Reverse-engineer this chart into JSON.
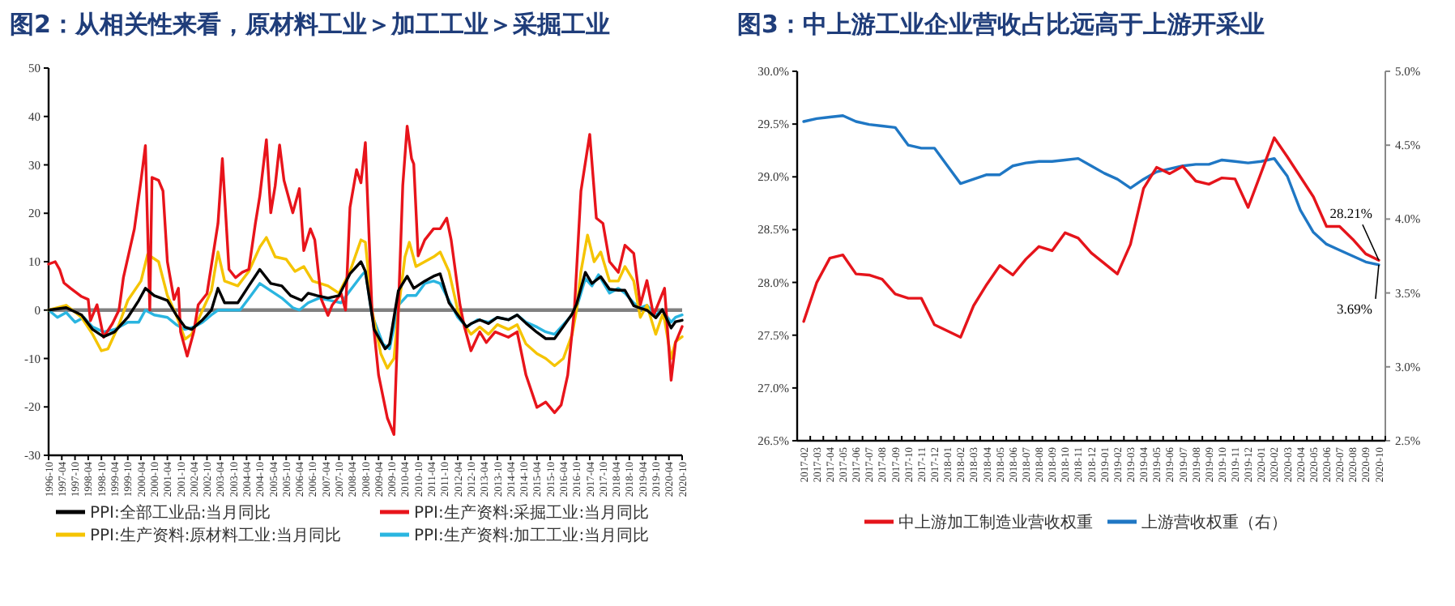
{
  "chart_data": [
    {
      "type": "line",
      "title": "图2：从相关性来看，原材料工业＞加工工业＞采掘工业",
      "xlim": [
        "1996-10",
        "2020-10"
      ],
      "xticks": [
        "1996-10",
        "1997-04",
        "1997-10",
        "1998-04",
        "1998-10",
        "1999-04",
        "1999-10",
        "2000-04",
        "2000-10",
        "2001-04",
        "2001-10",
        "2002-04",
        "2002-10",
        "2003-04",
        "2003-10",
        "2004-04",
        "2004-10",
        "2005-04",
        "2005-10",
        "2006-04",
        "2006-10",
        "2007-04",
        "2007-10",
        "2008-04",
        "2008-10",
        "2009-04",
        "2009-10",
        "2010-04",
        "2010-10",
        "2011-04",
        "2011-10",
        "2012-04",
        "2012-10",
        "2013-04",
        "2013-10",
        "2014-04",
        "2014-10",
        "2015-04",
        "2015-10",
        "2016-04",
        "2016-10",
        "2017-04",
        "2017-10",
        "2018-04",
        "2018-10",
        "2019-04",
        "2019-10",
        "2020-04",
        "2020-10"
      ],
      "ylim": [
        -30,
        50
      ],
      "yticks": [
        -30,
        -20,
        -10,
        0,
        10,
        20,
        30,
        40,
        50
      ],
      "ref_lines": [
        {
          "axis": "y",
          "value": 0,
          "color": "#808080"
        }
      ],
      "legend": "bottom",
      "series": [
        {
          "name": "PPI:全部工业品:当月同比",
          "color": "#000000",
          "x": [
            "1996-10",
            "1997-06",
            "1998-01",
            "1998-06",
            "1998-11",
            "1999-04",
            "1999-10",
            "2000-03",
            "2000-06",
            "2000-10",
            "2001-04",
            "2001-08",
            "2001-12",
            "2002-03",
            "2002-08",
            "2002-12",
            "2003-03",
            "2003-06",
            "2003-12",
            "2004-05",
            "2004-10",
            "2005-03",
            "2005-08",
            "2005-12",
            "2006-05",
            "2006-08",
            "2006-12",
            "2007-05",
            "2007-10",
            "2008-03",
            "2008-08",
            "2008-10",
            "2009-02",
            "2009-07",
            "2009-09",
            "2010-01",
            "2010-05",
            "2010-08",
            "2011-01",
            "2011-05",
            "2011-08",
            "2011-12",
            "2012-04",
            "2012-08",
            "2012-10",
            "2013-02",
            "2013-06",
            "2013-10",
            "2014-03",
            "2014-07",
            "2014-11",
            "2015-04",
            "2015-08",
            "2015-12",
            "2016-04",
            "2016-08",
            "2016-10",
            "2017-02",
            "2017-05",
            "2017-09",
            "2018-01",
            "2018-05",
            "2018-08",
            "2018-12",
            "2019-03",
            "2019-06",
            "2019-10",
            "2020-01",
            "2020-05",
            "2020-07",
            "2020-10"
          ],
          "values": [
            0,
            0.5,
            -1,
            -4,
            -5.5,
            -4.5,
            -1.5,
            2,
            4.5,
            3,
            2,
            -1,
            -3.5,
            -4,
            -2,
            0,
            4.5,
            1.5,
            1.5,
            5,
            8.4,
            5.5,
            5,
            3,
            2,
            3.5,
            3,
            2.5,
            3,
            7.5,
            10,
            8,
            -4,
            -8,
            -7,
            4,
            7,
            4.5,
            6,
            7,
            7.5,
            1.5,
            -1,
            -3.5,
            -2.8,
            -2,
            -2.8,
            -1.5,
            -2,
            -1,
            -2.7,
            -4.6,
            -5.9,
            -5.9,
            -3.4,
            -0.8,
            1.2,
            7.8,
            5.5,
            6.9,
            4.3,
            4.1,
            4.1,
            0.9,
            0.4,
            0,
            -1.6,
            0.1,
            -3.7,
            -2.4,
            -2.1
          ]
        },
        {
          "name": "PPI:生产资料:采掘工业:当月同比",
          "color": "#e8141b",
          "x": [
            "1996-10",
            "1997-01",
            "1997-03",
            "1997-05",
            "1997-08",
            "1998-01",
            "1998-04",
            "1998-05",
            "1998-08",
            "1998-11",
            "1999-03",
            "1999-06",
            "1999-08",
            "2000-01",
            "2000-04",
            "2000-06",
            "2000-08",
            "2000-09",
            "2000-12",
            "2001-02",
            "2001-04",
            "2001-07",
            "2001-09",
            "2001-10",
            "2002-01",
            "2002-04",
            "2002-06",
            "2002-10",
            "2003-03",
            "2003-05",
            "2003-08",
            "2003-11",
            "2004-02",
            "2004-05",
            "2004-08",
            "2004-10",
            "2005-01",
            "2005-03",
            "2005-05",
            "2005-07",
            "2005-09",
            "2006-01",
            "2006-04",
            "2006-06",
            "2006-09",
            "2006-11",
            "2007-02",
            "2007-05",
            "2007-07",
            "2007-11",
            "2008-01",
            "2008-03",
            "2008-06",
            "2008-08",
            "2008-10",
            "2009-01",
            "2009-04",
            "2009-08",
            "2009-11",
            "2010-01",
            "2010-03",
            "2010-05",
            "2010-07",
            "2010-08",
            "2010-10",
            "2011-01",
            "2011-05",
            "2011-08",
            "2011-11",
            "2012-01",
            "2012-05",
            "2012-07",
            "2012-10",
            "2013-02",
            "2013-05",
            "2013-09",
            "2014-03",
            "2014-07",
            "2014-11",
            "2015-04",
            "2015-08",
            "2015-12",
            "2016-03",
            "2016-06",
            "2016-09",
            "2016-12",
            "2017-04",
            "2017-07",
            "2017-10",
            "2018-01",
            "2018-05",
            "2018-08",
            "2018-12",
            "2019-03",
            "2019-06",
            "2019-09",
            "2020-02",
            "2020-05",
            "2020-07",
            "2020-10"
          ],
          "values": [
            9.5,
            10,
            8.4,
            5.6,
            4.5,
            2.8,
            2.2,
            -2.2,
            1.1,
            -5.6,
            -2.8,
            0,
            6.7,
            16.8,
            26.8,
            34,
            0,
            27.4,
            26.8,
            24.6,
            10,
            2.2,
            4.5,
            -4.5,
            -9.5,
            -4.5,
            1.1,
            3.4,
            17.9,
            31.3,
            8.4,
            6.7,
            7.8,
            8.4,
            17.9,
            23.5,
            35.2,
            20.1,
            25.7,
            34.1,
            26.8,
            20.1,
            25.1,
            12.3,
            16.8,
            14.5,
            2.2,
            -1.1,
            1.1,
            3.4,
            0,
            21.2,
            29,
            26.3,
            34.6,
            0,
            -13.4,
            -22.3,
            -25.7,
            0,
            25.7,
            38,
            31.3,
            30.2,
            11.2,
            14.5,
            16.8,
            16.8,
            19,
            14.5,
            1.1,
            -3.4,
            -8.4,
            -4.5,
            -6.7,
            -4.5,
            -5.6,
            -4.5,
            -13.4,
            -20.1,
            -19,
            -21.2,
            -19.6,
            -13.4,
            0,
            24.6,
            36.3,
            19,
            17.9,
            10,
            7.8,
            13.4,
            11.7,
            1.1,
            6.1,
            -1.1,
            4.5,
            -14.5,
            -6.7,
            -3.4
          ]
        },
        {
          "name": "PPI:生产资料:原材料工业:当月同比",
          "color": "#f5c400",
          "x": [
            "1996-10",
            "1997-06",
            "1998-01",
            "1998-06",
            "1998-10",
            "1999-01",
            "1999-06",
            "1999-10",
            "2000-04",
            "2000-07",
            "2000-12",
            "2001-04",
            "2001-08",
            "2001-12",
            "2002-03",
            "2002-08",
            "2002-12",
            "2003-03",
            "2003-06",
            "2003-12",
            "2004-05",
            "2004-10",
            "2005-01",
            "2005-05",
            "2005-10",
            "2006-02",
            "2006-06",
            "2006-10",
            "2007-05",
            "2007-10",
            "2008-03",
            "2008-08",
            "2008-10",
            "2009-01",
            "2009-05",
            "2009-08",
            "2009-11",
            "2010-01",
            "2010-04",
            "2010-06",
            "2010-09",
            "2011-01",
            "2011-05",
            "2011-08",
            "2011-12",
            "2012-04",
            "2012-07",
            "2012-10",
            "2013-02",
            "2013-06",
            "2013-10",
            "2014-03",
            "2014-07",
            "2014-11",
            "2015-04",
            "2015-08",
            "2015-12",
            "2016-04",
            "2016-08",
            "2016-10",
            "2016-12",
            "2017-03",
            "2017-06",
            "2017-09",
            "2018-01",
            "2018-05",
            "2018-08",
            "2018-12",
            "2019-03",
            "2019-06",
            "2019-10",
            "2020-01",
            "2020-02",
            "2020-05",
            "2020-07",
            "2020-10"
          ],
          "values": [
            0,
            1,
            -1.5,
            -5,
            -8.4,
            -8,
            -3,
            2,
            6,
            11.5,
            10,
            3,
            -1,
            -6,
            -5,
            0,
            4,
            12,
            6,
            5,
            8,
            13,
            15,
            11,
            10.5,
            8,
            9,
            6,
            5,
            3.5,
            8,
            14.5,
            14,
            0,
            -9,
            -12,
            -10,
            0,
            11,
            14,
            9,
            10,
            11,
            12,
            8,
            0,
            -3,
            -5,
            -3.5,
            -5,
            -3,
            -4,
            -3,
            -7,
            -9,
            -10,
            -11.5,
            -10,
            -5,
            0,
            8,
            15.5,
            10,
            12,
            6,
            6,
            9,
            6,
            -1.5,
            1,
            -5,
            -1,
            -2,
            -10,
            -6.5,
            -5.5
          ]
        },
        {
          "name": "PPI:生产资料:加工工业:当月同比",
          "color": "#2ab5e0",
          "x": [
            "1996-10",
            "1997-02",
            "1997-06",
            "1997-10",
            "1998-02",
            "1998-06",
            "1998-11",
            "1999-04",
            "1999-10",
            "2000-03",
            "2000-06",
            "2000-10",
            "2001-04",
            "2001-08",
            "2001-12",
            "2002-04",
            "2002-08",
            "2002-12",
            "2003-03",
            "2003-09",
            "2004-01",
            "2004-06",
            "2004-10",
            "2005-03",
            "2005-08",
            "2006-01",
            "2006-04",
            "2006-08",
            "2007-01",
            "2007-06",
            "2007-11",
            "2008-03",
            "2008-08",
            "2008-10",
            "2009-01",
            "2009-06",
            "2009-09",
            "2010-01",
            "2010-05",
            "2010-09",
            "2011-01",
            "2011-05",
            "2011-08",
            "2011-12",
            "2012-04",
            "2012-08",
            "2013-01",
            "2013-06",
            "2013-10",
            "2014-03",
            "2014-07",
            "2014-11",
            "2015-04",
            "2015-08",
            "2015-12",
            "2016-04",
            "2016-08",
            "2016-10",
            "2017-02",
            "2017-05",
            "2017-08",
            "2018-01",
            "2018-05",
            "2018-08",
            "2018-12",
            "2019-03",
            "2019-06",
            "2019-10",
            "2020-01",
            "2020-05",
            "2020-07",
            "2020-10"
          ],
          "values": [
            0,
            -1.5,
            -0.5,
            -2.5,
            -1.5,
            -3.5,
            -4.5,
            -4,
            -2.5,
            -2.5,
            0,
            -1,
            -1.5,
            -3,
            -4,
            -3.5,
            -2.5,
            -1,
            0,
            0,
            0,
            3,
            5.5,
            4,
            2.5,
            0.5,
            0,
            1.5,
            2.5,
            2,
            1.5,
            4,
            7,
            8,
            -1,
            -7,
            -8,
            1,
            3,
            3,
            5.5,
            6,
            5.5,
            2,
            -1.5,
            -3.5,
            -2,
            -2.5,
            -1.5,
            -2,
            -1,
            -2.5,
            -3.5,
            -4.5,
            -5,
            -3,
            -1,
            0.5,
            6.5,
            5,
            7.3,
            3.5,
            4.5,
            3.5,
            1.5,
            0.5,
            1,
            -1,
            0,
            -2.5,
            -1.5,
            -1
          ]
        }
      ]
    },
    {
      "type": "line",
      "title": "图3：中上游工业企业营收占比远高于上游开采业",
      "categories": [
        "2017-02",
        "2017-03",
        "2017-04",
        "2017-05",
        "2017-06",
        "2017-07",
        "2017-08",
        "2017-09",
        "2017-10",
        "2017-11",
        "2017-12",
        "2018-01",
        "2018-02",
        "2018-03",
        "2018-04",
        "2018-05",
        "2018-06",
        "2018-07",
        "2018-08",
        "2018-09",
        "2018-10",
        "2018-11",
        "2018-12",
        "2019-01",
        "2019-02",
        "2019-03",
        "2019-04",
        "2019-05",
        "2019-06",
        "2019-07",
        "2019-08",
        "2019-09",
        "2019-10",
        "2019-11",
        "2019-12",
        "2020-01",
        "2020-02",
        "2020-03",
        "2020-04",
        "2020-05",
        "2020-06",
        "2020-07",
        "2020-08",
        "2020-09",
        "2020-10"
      ],
      "ylim": [
        26.5,
        30
      ],
      "yticks": [
        {
          "value": 26.5,
          "label": "26.5%"
        },
        {
          "value": 27,
          "label": "27.0%"
        },
        {
          "value": 27.5,
          "label": "27.5%"
        },
        {
          "value": 28,
          "label": "28.0%"
        },
        {
          "value": 28.5,
          "label": "28.5%"
        },
        {
          "value": 29,
          "label": "29.0%"
        },
        {
          "value": 29.5,
          "label": "29.5%"
        },
        {
          "value": 30,
          "label": "30.0%"
        }
      ],
      "y2lim": [
        2.5,
        5
      ],
      "y2ticks": [
        {
          "value": 2.5,
          "label": "2.5%"
        },
        {
          "value": 3,
          "label": "3.0%"
        },
        {
          "value": 3.5,
          "label": "3.5%"
        },
        {
          "value": 4,
          "label": "4.0%"
        },
        {
          "value": 4.5,
          "label": "4.5%"
        },
        {
          "value": 5,
          "label": "5.0%"
        }
      ],
      "legend": "bottom",
      "series": [
        {
          "name": "中上游加工制造业营收权重",
          "color": "#e5141b",
          "values": [
            27.63,
            28.0,
            28.23,
            28.26,
            28.08,
            28.07,
            28.03,
            27.89,
            27.85,
            27.85,
            27.6,
            27.54,
            27.48,
            27.78,
            27.98,
            28.16,
            28.07,
            28.22,
            28.34,
            28.3,
            28.47,
            28.42,
            28.28,
            28.18,
            28.08,
            28.36,
            28.89,
            29.09,
            29.03,
            29.1,
            28.96,
            28.93,
            28.99,
            28.98,
            28.71,
            29.04,
            29.37,
            29.19,
            29.0,
            28.81,
            28.53,
            28.53,
            28.41,
            28.27,
            28.21
          ],
          "value_labels": [
            null,
            null,
            null,
            null,
            null,
            null,
            null,
            null,
            null,
            null,
            null,
            null,
            null,
            null,
            null,
            null,
            null,
            null,
            null,
            null,
            null,
            null,
            null,
            null,
            null,
            null,
            null,
            null,
            null,
            null,
            null,
            null,
            null,
            null,
            null,
            null,
            null,
            null,
            null,
            null,
            null,
            null,
            null,
            null,
            "28.21%"
          ]
        },
        {
          "name": "上游营收权重（右）",
          "color": "#1f77c4",
          "axis": "y2",
          "values": [
            4.66,
            4.68,
            4.69,
            4.7,
            4.66,
            4.64,
            4.63,
            4.62,
            4.5,
            4.48,
            4.48,
            4.36,
            4.24,
            4.27,
            4.3,
            4.3,
            4.36,
            4.38,
            4.39,
            4.39,
            4.4,
            4.41,
            4.36,
            4.31,
            4.27,
            4.21,
            4.27,
            4.32,
            4.34,
            4.36,
            4.37,
            4.37,
            4.4,
            4.39,
            4.38,
            4.39,
            4.41,
            4.29,
            4.06,
            3.91,
            3.83,
            3.79,
            3.75,
            3.71,
            3.69
          ],
          "value_labels": [
            null,
            null,
            null,
            null,
            null,
            null,
            null,
            null,
            null,
            null,
            null,
            null,
            null,
            null,
            null,
            null,
            null,
            null,
            null,
            null,
            null,
            null,
            null,
            null,
            null,
            null,
            null,
            null,
            null,
            null,
            null,
            null,
            null,
            null,
            null,
            null,
            null,
            null,
            null,
            null,
            null,
            null,
            null,
            null,
            "3.69%"
          ]
        }
      ]
    }
  ]
}
